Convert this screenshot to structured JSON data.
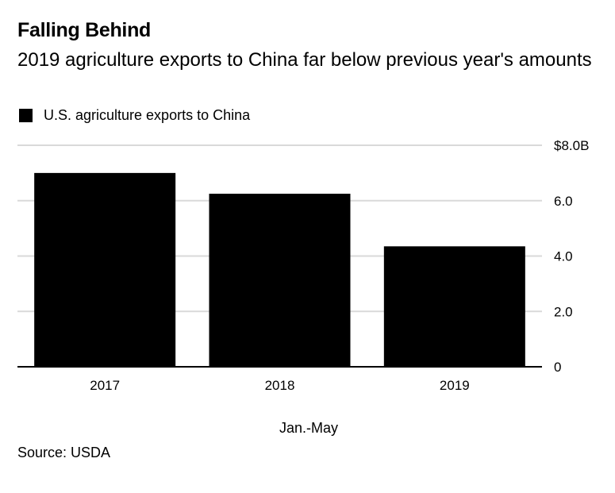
{
  "chart_data": {
    "type": "bar",
    "title": "Falling Behind",
    "subtitle": "2019 agriculture exports to China far below previous year's amounts",
    "legend": [
      "U.S. agriculture exports to China"
    ],
    "categories": [
      "2017",
      "2018",
      "2019"
    ],
    "series": [
      {
        "name": "U.S. agriculture exports to China",
        "values": [
          7.0,
          6.25,
          4.35
        ],
        "color": "#000000"
      }
    ],
    "ylim": [
      0,
      8
    ],
    "yticks": [
      0,
      2,
      4,
      6,
      8
    ],
    "ytick_labels": [
      "0",
      "2.0",
      "4.0",
      "6.0",
      "$8.0B"
    ],
    "y_axis_position": "right",
    "xlabel": "Jan.-May",
    "ylabel": "",
    "grid": true,
    "source": "Source: USDA"
  }
}
